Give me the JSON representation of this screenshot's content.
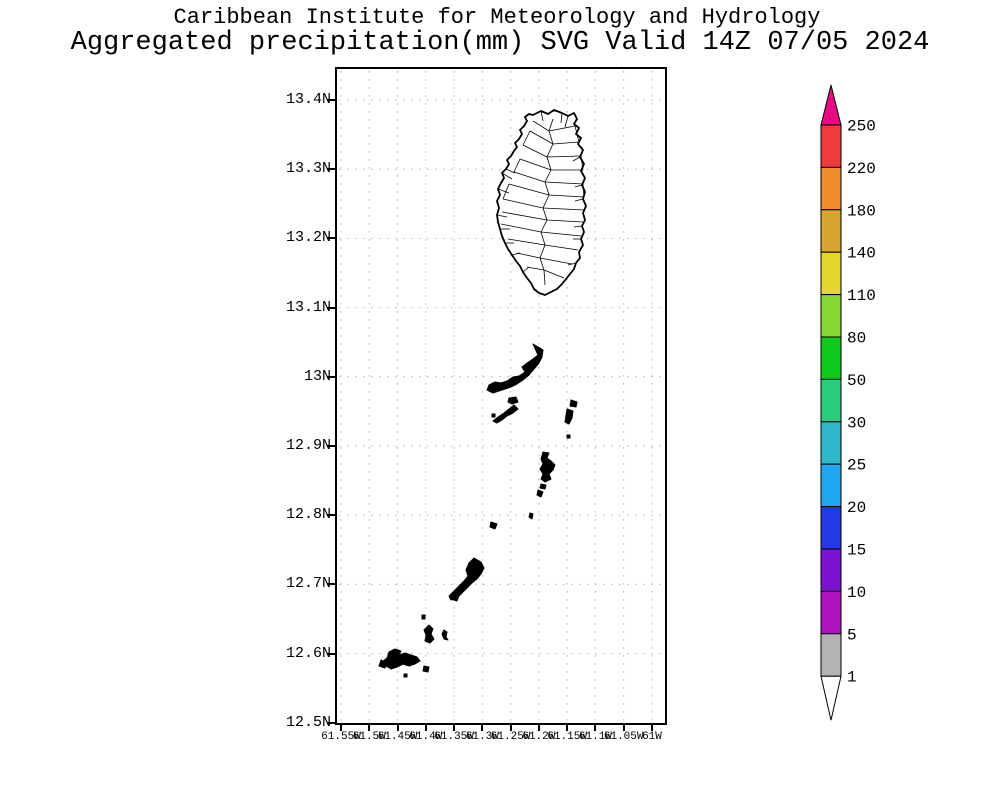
{
  "title": {
    "line1": "Caribbean Institute for Meteorology and Hydrology",
    "line2": "Aggregated precipitation(mm) SVG Valid 14Z 07/05 2024"
  },
  "map": {
    "lat_ticks": [
      "13.4N",
      "13.3N",
      "13.2N",
      "13.1N",
      "13N",
      "12.9N",
      "12.8N",
      "12.7N",
      "12.6N",
      "12.5N"
    ],
    "lon_ticks": [
      "61.55W",
      "61.5W",
      "61.45W",
      "61.4W",
      "61.35W",
      "61.3W",
      "61.25W",
      "61.2W",
      "61.15W",
      "61.1W",
      "61.05W",
      "61W"
    ],
    "grid_color": "#b2b2b2",
    "border_color": "#000000",
    "land_outline_color": "#000000",
    "land_fill_color": "#ffffff"
  },
  "colorbar": {
    "tick_labels": [
      "250",
      "220",
      "180",
      "140",
      "110",
      "80",
      "50",
      "30",
      "25",
      "20",
      "15",
      "10",
      "5",
      "1"
    ],
    "segment_colors_top_to_bottom": [
      "#f13a3a",
      "#ef8b28",
      "#d9a52e",
      "#e5d72e",
      "#86d930",
      "#0fc91e",
      "#2bcc7e",
      "#2db7c9",
      "#1fa8f0",
      "#2438e6",
      "#7d12d0",
      "#b211c2",
      "#b3b3b3"
    ],
    "above_max_color": "#e60a84",
    "below_min_color": "#ffffff",
    "outline_color": "#000000"
  }
}
